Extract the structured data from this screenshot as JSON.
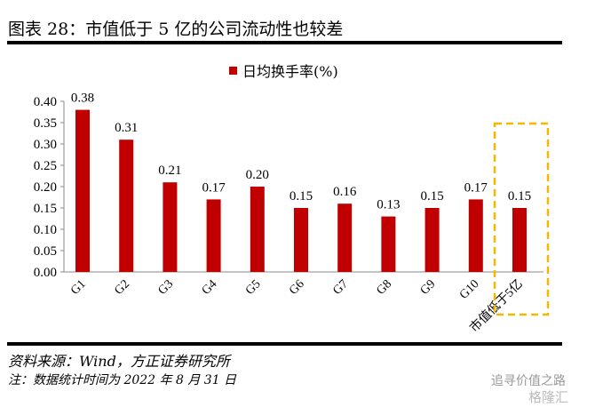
{
  "title": "图表 28：市值低于 5 亿的公司流动性也较差",
  "source": "资料来源：Wind，方正证券研究所",
  "note": "注：数据统计时间为 2022 年 8 月 31 日",
  "watermark": {
    "line1": "追寻价值之路",
    "line2": "格隆汇"
  },
  "chart_data": {
    "type": "bar",
    "title": "",
    "legend": [
      "日均换手率(%)"
    ],
    "legend_position": "top-center",
    "categories": [
      "G1",
      "G2",
      "G3",
      "G4",
      "G5",
      "G6",
      "G7",
      "G8",
      "G9",
      "G10",
      "市值低于5亿"
    ],
    "values": [
      0.38,
      0.31,
      0.21,
      0.17,
      0.2,
      0.15,
      0.16,
      0.13,
      0.15,
      0.17,
      0.15
    ],
    "data_labels": [
      "0.38",
      "0.31",
      "0.21",
      "0.17",
      "0.20",
      "0.15",
      "0.16",
      "0.13",
      "0.15",
      "0.17",
      "0.15"
    ],
    "ylim": [
      0,
      0.4
    ],
    "yticks": [
      "0.00",
      "0.05",
      "0.10",
      "0.15",
      "0.20",
      "0.25",
      "0.30",
      "0.35",
      "0.40"
    ],
    "highlight": "市值低于5亿",
    "bar_color": "#c00000",
    "highlight_color": "#f5b800",
    "grid": false
  }
}
